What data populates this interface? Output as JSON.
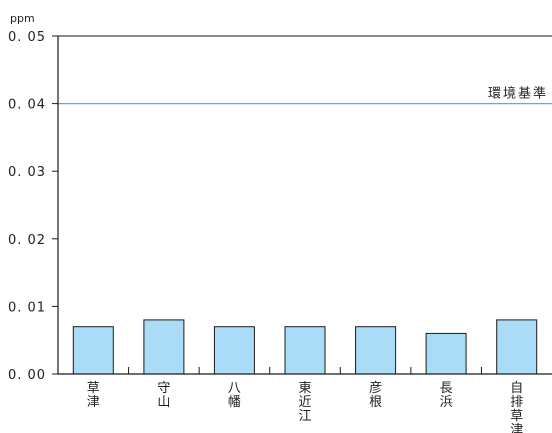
{
  "chart_data": {
    "type": "bar",
    "unit": "ppm",
    "categories": [
      "草津",
      "守山",
      "八幡",
      "東近江",
      "彦根",
      "長浜",
      "自排草津"
    ],
    "values": [
      0.007,
      0.008,
      0.007,
      0.007,
      0.007,
      0.006,
      0.008
    ],
    "ylim": [
      0,
      0.05
    ],
    "yticks": [
      0.0,
      0.01,
      0.02,
      0.03,
      0.04,
      0.05
    ],
    "ytick_labels": [
      "0. 00",
      "0. 01",
      "0. 02",
      "0. 03",
      "0. 04",
      "0. 05"
    ],
    "reference_line": {
      "value": 0.04,
      "label": "環境基準"
    },
    "colors": {
      "bar_fill": "#aadcf7",
      "bar_stroke": "#1a1a1a",
      "reference_line": "#4cb2e6",
      "axis": "#1a1a1a"
    },
    "grid": false
  }
}
